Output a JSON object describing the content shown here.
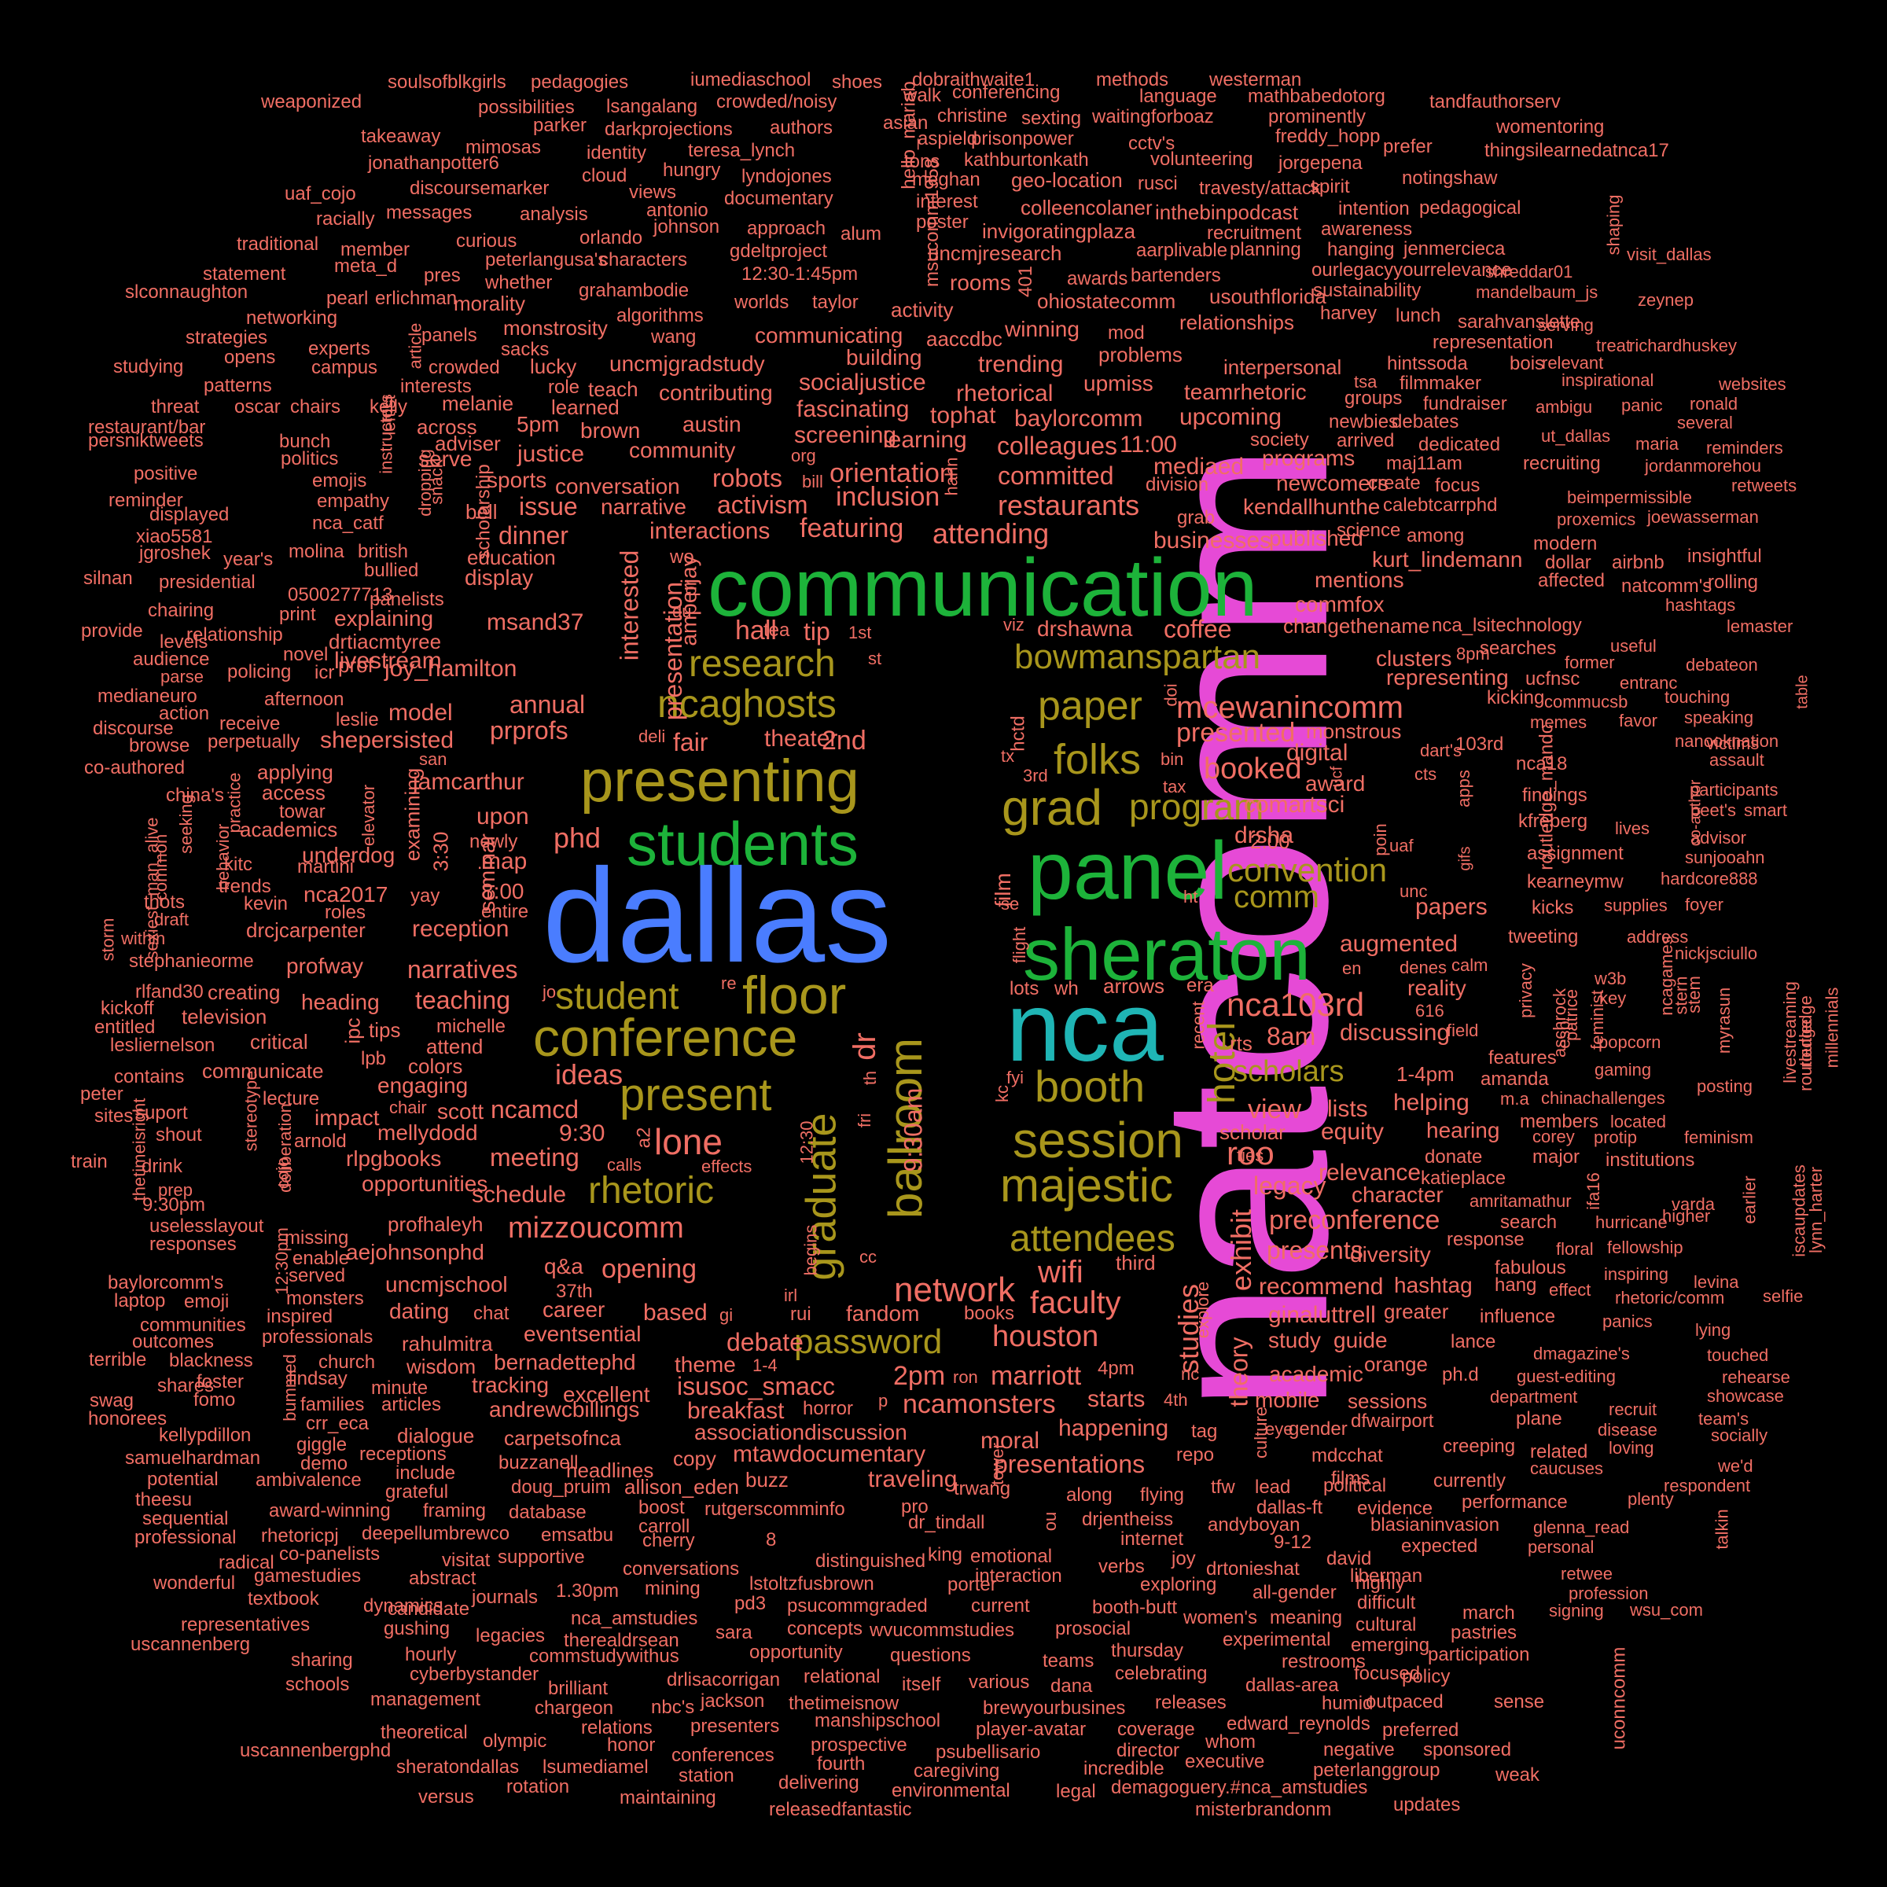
{
  "palette": {
    "background": "#000000",
    "natcomm": "#E64AD6",
    "dallas": "#4A7DFF",
    "nca": "#1FB5B5",
    "green": "#1DB33A",
    "olive": "#A8961C",
    "salmon": "#F06E64"
  },
  "words": [
    "natcomm",
    "dallas",
    "communication",
    "nca",
    "panel",
    "sheraton",
    "students",
    "presenting",
    "conference",
    "floor",
    "session",
    "grad",
    "majestic",
    "folks",
    "paper",
    "ballroom",
    "graduate",
    "research",
    "ncaghosts",
    "bowmanspartan",
    "student",
    "present",
    "booth",
    "hotel",
    "attendees",
    "mcewanincomm",
    "nca103rd",
    "rhetoric",
    "program",
    "network",
    "mizzoucomm",
    "wifi",
    "password",
    "houston",
    "faculty",
    "convention",
    "comm",
    "scholars",
    "restaurants",
    "attending",
    "featuring",
    "inclusion",
    "orientation",
    "theater",
    "hall",
    "2nd",
    "lone",
    "roo",
    "booked",
    "presented",
    "phd",
    "ideas",
    "annual",
    "prprofs",
    "jamcarthur",
    "meeting",
    "schedule",
    "opening",
    "debate",
    "isusoc_smacc",
    "breakfast",
    "ncamonsters",
    "marriott",
    "2pm",
    "exhibit",
    "studies",
    "theory",
    "presentations",
    "preconference",
    "presents",
    "ginaluttrell",
    "recommend",
    "hashtag",
    "legacy",
    "relevance",
    "character",
    "equity",
    "view",
    "8am",
    "discussing",
    "augmented",
    "reality",
    "papers",
    "drsha",
    "comartsci",
    "digital",
    "award",
    "monstrous",
    "clusters",
    "representing",
    "changethename",
    "nca_lsitechnology",
    "mentions",
    "commfox",
    "kurt_lindemann",
    "published",
    "businesses",
    "colleagues",
    "committed",
    "baylorcomm",
    "upcoming",
    "mediaed",
    "programs",
    "newcomers",
    "kendallhunthe",
    "coffee",
    "drshawna",
    "activism",
    "robots",
    "interactions",
    "conversation",
    "narrative",
    "community",
    "austin",
    "screening",
    "learning",
    "tophat",
    "rhetorical",
    "upmiss",
    "teamrhetoric",
    "socialjustice",
    "fascinating",
    "contributing",
    "uncmjgradstudy",
    "building",
    "trending",
    "communicating",
    "winning",
    "problems",
    "relationships",
    "interpersonal",
    "activity",
    "rooms",
    "uncmjresearch",
    "aaccdbc",
    "ohiostatecomm",
    "usouthflorida",
    "invigoratingplaza",
    "inthebinpodcast",
    "colleencolaner",
    "geo-location",
    "kathburtonkath",
    "aspield",
    "prisonpower",
    "christine",
    "sexting",
    "waitingforboaz",
    "prominently",
    "freddy_hopp",
    "jorgepena",
    "volunteering",
    "travesty/attack",
    "recruitment",
    "awareness",
    "intention",
    "pedagogical",
    "jenmercieca",
    "ourlegacyyourrelevance",
    "sustainability",
    "harvey",
    "lunch",
    "sarahvanslette",
    "representation",
    "treat",
    "richardhuskey",
    "relevant",
    "hintssoda",
    "bois",
    "filmmaker",
    "fundraiser",
    "debates",
    "newbies",
    "society",
    "arrived",
    "dedicated",
    "recruiting",
    "maj11am",
    "create",
    "focus",
    "calebtcarrphd",
    "science",
    "among",
    "modern",
    "dollar",
    "airbnb",
    "insightful",
    "affected",
    "natcomm's",
    "rolling",
    "hashtags",
    "lemaster",
    "useful",
    "former",
    "debateon",
    "ucfnsc",
    "kicking",
    "commucsb",
    "touching",
    "memes",
    "favor",
    "speaking",
    "nanooknation",
    "103rd",
    "nca18",
    "assault",
    "findings",
    "participants",
    "peet's",
    "smart",
    "kfreberg",
    "lives",
    "advisor",
    "assignment",
    "sunjooahn",
    "kearneymw",
    "hardcore888",
    "kicks",
    "supplies",
    "foyer",
    "tweeting",
    "address",
    "nickjsciullo",
    "privacy",
    "patrice",
    "key",
    "stern",
    "feminist",
    "popcorn",
    "gaming",
    "features",
    "amanda",
    "chinachallenges",
    "posting",
    "members",
    "located",
    "corey",
    "protip",
    "feminism",
    "donate",
    "major",
    "institutions",
    "katieplace",
    "amritamathur",
    "varda",
    "search",
    "hurricane",
    "response",
    "fellowship",
    "floral",
    "fabulous",
    "inspiring",
    "levina",
    "hang",
    "effect",
    "rhetoric/comm",
    "selfie",
    "influence",
    "panics",
    "lance",
    "lying",
    "dmagazine's",
    "touched",
    "guest-editing",
    "rehearse",
    "department",
    "showcase",
    "recruit",
    "team's",
    "plane",
    "disease",
    "socially",
    "related",
    "loving",
    "creeping",
    "caucuses",
    "we'd",
    "currently",
    "respondent",
    "performance",
    "plenty",
    "glenna_read",
    "personal",
    "expected",
    "talkin",
    "retwee",
    "liberman",
    "profession",
    "signing",
    "wsu_com",
    "march",
    "pastries",
    "participation",
    "policy",
    "emerging",
    "restrooms",
    "focused",
    "outpaced",
    "sense",
    "uconncomm",
    "humid",
    "preferred",
    "sponsored",
    "negative",
    "peterlanggroup",
    "weak",
    "updates",
    "misterbrandonm",
    "demagoguery.#nca_amstudies",
    "executive",
    "whom",
    "edward_reynolds",
    "director",
    "coverage",
    "incredible",
    "legal",
    "environmental",
    "releasedfantastic",
    "maintaining",
    "delivering",
    "fourth",
    "caregiving",
    "psubellisario",
    "player-avatar",
    "prospective",
    "brewyourbusines",
    "manshipschool",
    "thetimeisnow",
    "presenters",
    "conferences",
    "station",
    "rotation",
    "lsumediamel",
    "sheratondallas",
    "versus",
    "uscannenbergphd",
    "olympic",
    "honor",
    "relations",
    "theoretical",
    "management",
    "chargeon",
    "nbc's",
    "jackson",
    "brilliant",
    "drlisacorrigan",
    "relational",
    "itself",
    "various",
    "dana",
    "celebrating",
    "releases",
    "dallas-area",
    "cyberbystander",
    "hourly",
    "schools",
    "sharing",
    "uscannenberg",
    "representatives",
    "gushing",
    "legacies",
    "therealdrsean",
    "commstudywithus",
    "opportunity",
    "questions",
    "teams",
    "thursday",
    "experimental",
    "cultural",
    "women's",
    "meaning",
    "drtonieshat",
    "all-gender",
    "highly",
    "difficult",
    "david",
    "exploring",
    "booth-butt",
    "prosocial",
    "current",
    "wvucommstudies",
    "concepts",
    "psucommgraded",
    "nca_amstudies",
    "pd3",
    "sara",
    "candidate",
    "journals",
    "dynamics",
    "textbook",
    "wonderful",
    "gamestudies",
    "abstract",
    "visitat",
    "supportive",
    "conversations",
    "mining",
    "1.30pm",
    "lstoltzfusbrown",
    "porter",
    "interaction",
    "verbs",
    "joy",
    "emsatbu",
    "cherry",
    "8",
    "distinguished",
    "routledge",
    "emotional",
    "along",
    "drjentheiss",
    "flying",
    "internet",
    "andyboyan",
    "9-12",
    "blasianinvasion",
    "rutgerscomminfo",
    "boost",
    "carroll",
    "evidence",
    "tfw",
    "lead",
    "dallas-ft",
    "dr_tindall",
    "trwang",
    "pro",
    "king",
    "ou",
    "political",
    "films",
    "mdcchat",
    "dfwairport",
    "gender",
    "repo",
    "culture",
    "tag",
    "happening",
    "moral",
    "mtawdocumentary",
    "associationdiscussion",
    "copy",
    "buzz",
    "traveling",
    "headlines",
    "allison_eden",
    "doug_pruim",
    "database",
    "framing",
    "deepellumbrewco",
    "rhetoricpj",
    "co-panelists",
    "radical",
    "professional",
    "sequential",
    "award-winning",
    "theesu",
    "potential",
    "samuelhardman",
    "kellypdillon",
    "honorees",
    "swag",
    "shares",
    "fomo",
    "foster",
    "terrible",
    "blackness",
    "outcomes",
    "communities",
    "baylorcomm's",
    "laptop",
    "emoji",
    "inspired",
    "monsters",
    "served",
    "enable",
    "missing",
    "responses",
    "uselesslayout",
    "9:30pm",
    "prep",
    "thetimeisright",
    "drink",
    "train",
    "shout",
    "sites",
    "suport",
    "peter",
    "contains",
    "lesliernelson",
    "entitled",
    "kickoff",
    "rlfand30",
    "television",
    "stephanieorme",
    "creating",
    "critical",
    "communicate",
    "heading",
    "profway",
    "teaching",
    "narratives",
    "reception",
    "drcjcarpenter",
    "nca2017",
    "8:00",
    "map",
    "upon",
    "newly",
    "seminar",
    "3:30",
    "yay",
    "roles",
    "entire",
    "kevin",
    "martini",
    "kitc",
    "trends",
    "thots",
    "draft",
    "within",
    "storm",
    "sexiest_man_alive",
    "practice",
    "behavior",
    "seeking",
    "common",
    "china's",
    "towar",
    "applying",
    "access",
    "academics",
    "underdog",
    "elevator",
    "examining",
    "shepersisted",
    "model",
    "livestream",
    "joy_hamilton",
    "prof",
    "drtiacmtyree",
    "explaining",
    "msand37",
    "display",
    "education",
    "dinner",
    "issue",
    "bell",
    "sports",
    "justice",
    "serve",
    "adviser",
    "melanie",
    "across",
    "5pm",
    "brown",
    "learned",
    "teach",
    "role",
    "lucky",
    "sacks",
    "monstrosity",
    "morality",
    "whether",
    "peterlangusa's",
    "pres",
    "curious",
    "member",
    "traditional",
    "statement",
    "meta_d",
    "slconnaughton",
    "pearl",
    "erlichman",
    "networking",
    "strategies",
    "experts",
    "campus",
    "opens",
    "studying",
    "patterns",
    "threat",
    "oscar",
    "chairs",
    "kelly",
    "instructors",
    "leftist",
    "dropping",
    "snack",
    "scholarship",
    "interests",
    "crowded",
    "panels",
    "article",
    "restaurant/bar",
    "persniktweets",
    "positive",
    "bunch",
    "politics",
    "emojis",
    "empathy",
    "nca_catf",
    "reminder",
    "displayed",
    "xiao5581",
    "molina",
    "british",
    "year's",
    "bullied",
    "jgroshek",
    "silnan",
    "presidential",
    "0500277713",
    "panelists",
    "chairing",
    "print",
    "provide",
    "relationship",
    "levels",
    "audience",
    "novel",
    "parse",
    "policing",
    "icr",
    "medianeuro",
    "afternoon",
    "action",
    "leslie",
    "receive",
    "discourse",
    "perpetually",
    "browse",
    "san",
    "co-authored",
    "weaponized",
    "soulsofblkgirls",
    "pedagogies",
    "iumediaschool",
    "shoes",
    "dobraithwaite1",
    "methods",
    "westerman",
    "walk",
    "conferencing",
    "language",
    "mathbabedotorg",
    "tandfauthorserv",
    "possibilities",
    "lsangalang",
    "crowded/noisy",
    "asian",
    "parker",
    "darkprojections",
    "authors",
    "takeaway",
    "mimosas",
    "identity",
    "teresa_lynch",
    "womentoring",
    "prefer",
    "thingsilearnedatnca17",
    "jonathanpotter6",
    "cloud",
    "hungry",
    "lyndojones",
    "tons",
    "cctv's",
    "discoursemarker",
    "views",
    "documentary",
    "meghan",
    "uaf_cojo",
    "racially",
    "messages",
    "analysis",
    "antonio",
    "johnson",
    "interest",
    "poster",
    "rusci",
    "spirit",
    "notingshaw",
    "orlando",
    "approach",
    "alum",
    "gdeltproject",
    "12:30-1:45pm",
    "msucomm1958",
    "hello_mariab",
    "characters",
    "awards",
    "aarplivable",
    "planning",
    "hanging",
    "shreddar01",
    "visit_dallas",
    "shaping",
    "grahambodie",
    "worlds",
    "taylor",
    "algorithms",
    "wang",
    "bartenders",
    "mandelbaum_js",
    "zeynep",
    "serving",
    "401",
    "mod",
    "tsa",
    "groups",
    "inspirational",
    "websites",
    "ambigu",
    "panic",
    "ronald",
    "several",
    "ut_dallas",
    "maria",
    "reminders",
    "jordanmorehou",
    "retweets",
    "beimpermissible",
    "proxemics",
    "joewasserman",
    "victims",
    "entranc",
    "table",
    "co-author",
    "ifa16",
    "iscaupdates",
    "lynn_harter",
    "earlier",
    "higher",
    "myrasun",
    "livestreaming",
    "routledge",
    "millennials",
    "stem",
    "w3b",
    "ncagames",
    "esp",
    "aschrock",
    "calm",
    "denes",
    "en",
    "616",
    "field",
    "m.a",
    "ties",
    "calls",
    "effects",
    "begins",
    "12:30",
    "irl",
    "rui",
    "gi",
    "books",
    "fandom",
    "based",
    "theme",
    "1-4",
    "horror",
    "excellent",
    "tracking",
    "eventsential",
    "career",
    "37th",
    "q&a",
    "aejohnsonphd",
    "uncmjschool",
    "dating",
    "chat",
    "rahulmitra",
    "wisdom",
    "bernadettephd",
    "andrewcbillings",
    "carpetsofnca",
    "buzzanell",
    "receptions",
    "include",
    "grateful",
    "dialogue",
    "articles",
    "minute",
    "families",
    "church",
    "lindsay",
    "giggle",
    "crr_eca",
    "demo",
    "ambivalence",
    "professionals",
    "bummed",
    "12:30pm",
    "opportunities",
    "rlpgbooks",
    "profhaleyh",
    "mellydodd",
    "ncamcd",
    "scott",
    "chair",
    "colors",
    "engaging",
    "attend",
    "michelle",
    "tips",
    "impact",
    "lpb",
    "ipc",
    "arnold",
    "stereotype",
    "deliberation",
    "cojo",
    "lecture",
    "9:30",
    "a2",
    "interested",
    "presentation",
    "amperjay",
    "du",
    "pr",
    "wo",
    "deli",
    "fair",
    "tea",
    "1st",
    "st",
    "tip",
    "dr",
    "9:30am",
    "cc",
    "th",
    "fri",
    "re",
    "jo",
    "lots",
    "wh",
    "arrows",
    "era",
    "kc",
    "fyi",
    "film",
    "tx",
    "hctd",
    "3rd",
    "doi",
    "bin",
    "tax",
    "ucf",
    "dart's",
    "cts",
    "apps",
    "gifs",
    "poin",
    "unc",
    "uaf",
    "se",
    "ht",
    "flight",
    "viz",
    "2:00",
    "routledge_mandc",
    "rts",
    "scholar",
    "lists",
    "helping",
    "hearing",
    "1-4pm",
    "grab",
    "division",
    "11:00",
    "org",
    "bill",
    "hahn",
    "nc",
    "ron",
    "p",
    "4th",
    "4pm",
    "starts",
    "mobile",
    "sessions",
    "academic",
    "orange",
    "ph.d",
    "guide",
    "study",
    "greater",
    "third",
    "diversity",
    "explore",
    "recent",
    "eye",
    "tower",
    "cv",
    "8pm",
    "searches",
    "cv"
  ]
}
